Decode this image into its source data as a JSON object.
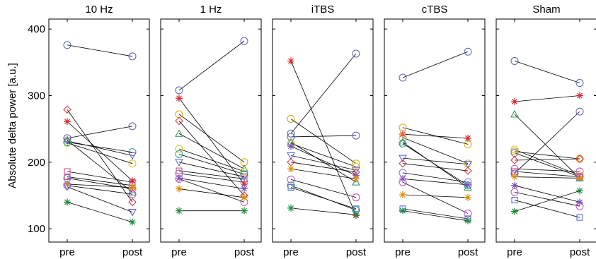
{
  "chart_data": {
    "type": "scatter",
    "ylabel": "Absolute delta power [a.u.]",
    "ylim": [
      80,
      415
    ],
    "yticks": [
      100,
      200,
      300,
      400
    ],
    "categories": [
      "pre",
      "post"
    ],
    "marker_colors": {
      "circle": "#3f3f9f",
      "star": "#d8262f",
      "diamond": "#d8262f",
      "triangle": "#2e8b57",
      "square": "#e33b6a",
      "triangle-down": "#4a5bd6",
      "yellow-circle": "#d4a017",
      "orange-circle": "#e0a400",
      "teal-circle": "#2a9d8f",
      "magenta-circle": "#c24ec2",
      "green-star": "#1a8a3a",
      "orange-star": "#e08a00"
    },
    "panels": [
      {
        "title": "10 Hz",
        "subjects": [
          {
            "marker": "circle",
            "color": "#5b5fb8",
            "values": [
              376,
              359
            ]
          },
          {
            "marker": "diamond",
            "color": "#d8262f",
            "values": [
              279,
              140
            ]
          },
          {
            "marker": "star",
            "color": "#d8262f",
            "values": [
              261,
              172
            ]
          },
          {
            "marker": "circle",
            "color": "#5b5fb8",
            "values": [
              236,
              254
            ]
          },
          {
            "marker": "triangle",
            "color": "#2e8b57",
            "values": [
              233,
              155
            ]
          },
          {
            "marker": "circle",
            "color": "#d4c21a",
            "values": [
              229,
              198
            ]
          },
          {
            "marker": "circle",
            "color": "#2a9d8f",
            "values": [
              230,
              215
            ]
          },
          {
            "marker": "triangle-down",
            "color": "#7a4fbf",
            "values": [
              232,
              210
            ]
          },
          {
            "marker": "square",
            "color": "#e33b6a",
            "values": [
              186,
              170
            ]
          },
          {
            "marker": "square",
            "color": "#e33b6a",
            "values": [
              178,
              165
            ]
          },
          {
            "marker": "circle",
            "color": "#7a7ad0",
            "values": [
              176,
              160
            ]
          },
          {
            "marker": "circle",
            "color": "#c24ec2",
            "values": [
              165,
              152
            ]
          },
          {
            "marker": "star",
            "color": "#e08a00",
            "values": [
              167,
              162
            ]
          },
          {
            "marker": "triangle-down",
            "color": "#4a5bd6",
            "values": [
              163,
              125
            ]
          },
          {
            "marker": "star",
            "color": "#1a8a3a",
            "values": [
              140,
              110
            ]
          }
        ]
      },
      {
        "title": "1 Hz",
        "subjects": [
          {
            "marker": "circle",
            "color": "#5b5fb8",
            "values": [
              308,
              382
            ]
          },
          {
            "marker": "star",
            "color": "#d8262f",
            "values": [
              296,
              167
            ]
          },
          {
            "marker": "circle",
            "color": "#e0a400",
            "values": [
              272,
              200
            ]
          },
          {
            "marker": "diamond",
            "color": "#d8262f",
            "values": [
              262,
              150
            ]
          },
          {
            "marker": "triangle",
            "color": "#2e8b57",
            "values": [
              243,
              190
            ]
          },
          {
            "marker": "circle",
            "color": "#d4c21a",
            "values": [
              220,
              186
            ]
          },
          {
            "marker": "circle",
            "color": "#2a9d8f",
            "values": [
              212,
              182
            ]
          },
          {
            "marker": "triangle-down",
            "color": "#4a5bd6",
            "values": [
              200,
              178
            ]
          },
          {
            "marker": "square",
            "color": "#e33b6a",
            "values": [
              187,
              175
            ]
          },
          {
            "marker": "circle",
            "color": "#7a7ad0",
            "values": [
              183,
              170
            ]
          },
          {
            "marker": "star",
            "color": "#7a4fbf",
            "values": [
              176,
              160
            ]
          },
          {
            "marker": "circle",
            "color": "#c24ec2",
            "values": [
              175,
              140
            ]
          },
          {
            "marker": "star",
            "color": "#e08a00",
            "values": [
              160,
              147
            ]
          },
          {
            "marker": "star",
            "color": "#1a8a3a",
            "values": [
              127,
              127
            ]
          }
        ]
      },
      {
        "title": "iTBS",
        "subjects": [
          {
            "marker": "star",
            "color": "#d8262f",
            "values": [
              352,
              120
            ]
          },
          {
            "marker": "circle",
            "color": "#e0a400",
            "values": [
              265,
              198
            ]
          },
          {
            "marker": "circle",
            "color": "#5b5fb8",
            "values": [
              243,
              363
            ]
          },
          {
            "marker": "circle",
            "color": "#5b5fb8",
            "values": [
              238,
              240
            ]
          },
          {
            "marker": "triangle",
            "color": "#2e8b57",
            "values": [
              230,
              170
            ]
          },
          {
            "marker": "circle",
            "color": "#d4c21a",
            "values": [
              228,
              193
            ]
          },
          {
            "marker": "star",
            "color": "#7a4fbf",
            "values": [
              224,
              180
            ]
          },
          {
            "marker": "triangle-down",
            "color": "#4a5bd6",
            "values": [
              210,
              188
            ]
          },
          {
            "marker": "diamond",
            "color": "#d8262f",
            "values": [
              200,
              185
            ]
          },
          {
            "marker": "star",
            "color": "#e08a00",
            "values": [
              190,
              175
            ]
          },
          {
            "marker": "circle",
            "color": "#c24ec2",
            "values": [
              174,
              147
            ]
          },
          {
            "marker": "square",
            "color": "#4a5bd6",
            "values": [
              162,
              130
            ]
          },
          {
            "marker": "circle",
            "color": "#2a9d8f",
            "values": [
              165,
              128
            ]
          },
          {
            "marker": "star",
            "color": "#1a8a3a",
            "values": [
              131,
              121
            ]
          }
        ]
      },
      {
        "title": "cTBS",
        "subjects": [
          {
            "marker": "circle",
            "color": "#5b5fb8",
            "values": [
              327,
              366
            ]
          },
          {
            "marker": "circle",
            "color": "#e0a400",
            "values": [
              252,
              227
            ]
          },
          {
            "marker": "star",
            "color": "#d8262f",
            "values": [
              242,
              236
            ]
          },
          {
            "marker": "circle",
            "color": "#d4c21a",
            "values": [
              237,
              198
            ]
          },
          {
            "marker": "triangle",
            "color": "#2e8b57",
            "values": [
              230,
              162
            ]
          },
          {
            "marker": "circle",
            "color": "#2a9d8f",
            "values": [
              228,
              165
            ]
          },
          {
            "marker": "triangle-down",
            "color": "#4a5bd6",
            "values": [
              206,
              197
            ]
          },
          {
            "marker": "diamond",
            "color": "#d8262f",
            "values": [
              198,
              187
            ]
          },
          {
            "marker": "circle",
            "color": "#7a7ad0",
            "values": [
              184,
              170
            ]
          },
          {
            "marker": "star",
            "color": "#7a4fbf",
            "values": [
              175,
              166
            ]
          },
          {
            "marker": "circle",
            "color": "#c24ec2",
            "values": [
              170,
              123
            ]
          },
          {
            "marker": "star",
            "color": "#e08a00",
            "values": [
              151,
              147
            ]
          },
          {
            "marker": "square",
            "color": "#4a5bd6",
            "values": [
              130,
              115
            ]
          },
          {
            "marker": "star",
            "color": "#1a8a3a",
            "values": [
              127,
              112
            ]
          }
        ]
      },
      {
        "title": "Sham",
        "subjects": [
          {
            "marker": "circle",
            "color": "#5b5fb8",
            "values": [
              352,
              319
            ]
          },
          {
            "marker": "star",
            "color": "#d8262f",
            "values": [
              291,
              300
            ]
          },
          {
            "marker": "triangle",
            "color": "#2e8b57",
            "values": [
              272,
              176
            ]
          },
          {
            "marker": "circle",
            "color": "#d4c21a",
            "values": [
              219,
              180
            ]
          },
          {
            "marker": "circle",
            "color": "#e0a400",
            "values": [
              216,
              205
            ]
          },
          {
            "marker": "circle",
            "color": "#7a7ad0",
            "values": [
              214,
              178
            ]
          },
          {
            "marker": "diamond",
            "color": "#d8262f",
            "values": [
              203,
              205
            ]
          },
          {
            "marker": "circle",
            "color": "#c24ec2",
            "values": [
              190,
              186
            ]
          },
          {
            "marker": "square",
            "color": "#e33b6a",
            "values": [
              186,
              178
            ]
          },
          {
            "marker": "circle",
            "color": "#5b5fb8",
            "values": [
              183,
              276
            ]
          },
          {
            "marker": "star",
            "color": "#e08a00",
            "values": [
              178,
              176
            ]
          },
          {
            "marker": "star",
            "color": "#7a4fbf",
            "values": [
              165,
              140
            ]
          },
          {
            "marker": "circle",
            "color": "#c24ec2",
            "values": [
              155,
              134
            ]
          },
          {
            "marker": "square",
            "color": "#4a5bd6",
            "values": [
              143,
              117
            ]
          },
          {
            "marker": "star",
            "color": "#1a8a3a",
            "values": [
              126,
              157
            ]
          }
        ]
      }
    ]
  }
}
